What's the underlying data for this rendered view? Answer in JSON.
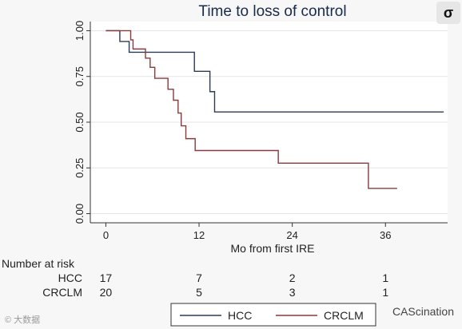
{
  "chart_data": {
    "type": "line",
    "title": "Time to loss of control",
    "xlabel": "Mo from first IRE",
    "ylabel": "",
    "xlim": [
      -2,
      44
    ],
    "ylim": [
      -0.05,
      1.05
    ],
    "x_ticks": [
      "0",
      "12",
      "24",
      "36"
    ],
    "x_tick_values": [
      0,
      12,
      24,
      36
    ],
    "y_ticks": [
      "0.00",
      "0.25",
      "0.50",
      "0.75",
      "1.00"
    ],
    "y_tick_values": [
      0,
      0.25,
      0.5,
      0.75,
      1
    ],
    "grid": true,
    "legend_position": "bottom",
    "series": [
      {
        "name": "HCC",
        "color": "#2b3a55",
        "x": [
          0,
          1.8,
          3,
          11.4,
          13.4,
          14,
          43.5
        ],
        "y": [
          1.0,
          0.941,
          0.882,
          0.778,
          0.667,
          0.556,
          0.556
        ]
      },
      {
        "name": "CRCLM",
        "color": "#8b3a3a",
        "x": [
          0,
          3.2,
          3.5,
          5.1,
          5.7,
          6.3,
          8,
          8.7,
          9.3,
          9.7,
          10.3,
          11.5,
          22.2,
          33.8,
          37.5
        ],
        "y": [
          1.0,
          0.95,
          0.9,
          0.85,
          0.8,
          0.74,
          0.68,
          0.62,
          0.55,
          0.48,
          0.41,
          0.345,
          0.276,
          0.138,
          0.138
        ]
      }
    ],
    "risk_table": {
      "header": "Number at risk",
      "rows": [
        {
          "label": "HCC",
          "values": [
            "17",
            "7",
            "2",
            "1"
          ]
        },
        {
          "label": "CRCLM",
          "values": [
            "20",
            "5",
            "3",
            "1"
          ]
        }
      ]
    }
  },
  "watermarks": {
    "right": "CAScination",
    "left": "© 大数据"
  },
  "logo_glyph": "σ"
}
